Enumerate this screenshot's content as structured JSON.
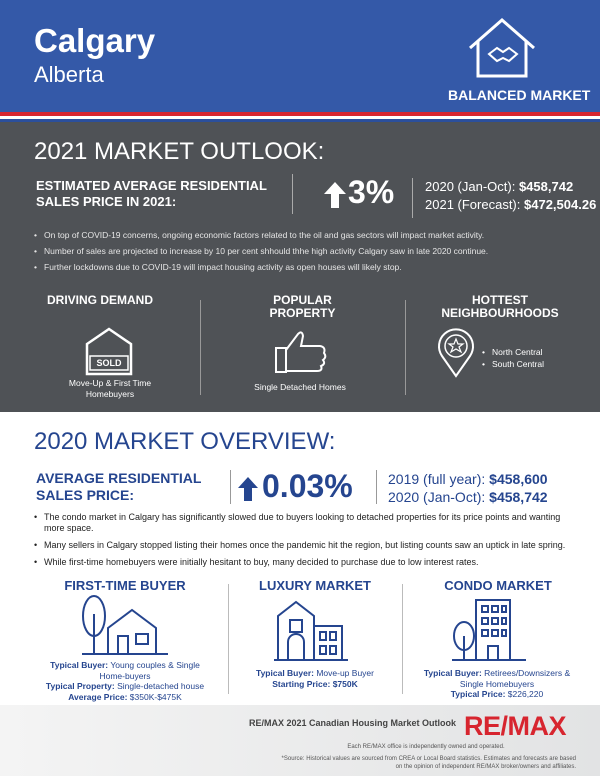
{
  "header": {
    "city": "Calgary",
    "province": "Alberta",
    "badge": "BALANCED MARKET"
  },
  "outlook": {
    "title": "2021 MARKET OUTLOOK:",
    "price_label": "ESTIMATED AVERAGE RESIDENTIAL SALES PRICE IN 2021:",
    "change": "3%",
    "figures": [
      {
        "label": "2020 (Jan-Oct):",
        "value": "$458,742"
      },
      {
        "label": "2021 (Forecast):",
        "value": "$472,504.26"
      }
    ],
    "bullets": [
      "On top of COVID-19 concerns, ongoing economic factors related to the oil and gas sectors will impact market activity.",
      "Number of sales are projected to increase by 10 per cent shhould thhe high activity Calgary saw in late 2020 continue.",
      "Further lockdowns due to COVID-19 will impact housing activity as open houses will likely stop."
    ],
    "columns": [
      {
        "title": "DRIVING DEMAND",
        "icon_text": "SOLD",
        "caption": "Move-Up & First Time Homebuyers"
      },
      {
        "title": "POPULAR PROPERTY",
        "caption": "Single Detached Homes"
      },
      {
        "title": "HOTTEST NEIGHBOURHOODS",
        "items": [
          "North Central",
          "South Central"
        ]
      }
    ]
  },
  "overview": {
    "title": "2020 MARKET OVERVIEW:",
    "price_label": "AVERAGE RESIDENTIAL SALES PRICE:",
    "change": "0.03%",
    "figures": [
      {
        "label": "2019 (full year):",
        "value": "$458,600"
      },
      {
        "label": "2020 (Jan-Oct):",
        "value": "$458,742"
      }
    ],
    "bullets": [
      "The condo market in Calgary has significantly slowed due to buyers looking to detached properties for its price points and wanting more space.",
      "Many sellers in Calgary stopped listing their homes once the pandemic hit the region, but listing counts saw an uptick in late spring.",
      "While first-time homebuyers were initially hesitant to buy, many decided to purchase due to low interest rates."
    ],
    "markets": [
      {
        "title": "FIRST-TIME BUYER",
        "details": [
          {
            "label": "Typical Buyer:",
            "value": "Young couples & Single Home-buyers"
          },
          {
            "label": "Typical Property:",
            "value": "Single-detached house"
          },
          {
            "label": "Average Price:",
            "value": "$350K-$475K"
          }
        ]
      },
      {
        "title": "LUXURY MARKET",
        "details": [
          {
            "label": "Typical Buyer:",
            "value": "Move-up Buyer"
          },
          {
            "label": "Starting Price:",
            "value": "$750K"
          }
        ]
      },
      {
        "title": "CONDO MARKET",
        "details": [
          {
            "label": "Typical Buyer:",
            "value": "Retirees/Downsizers & Single Homebuyers"
          },
          {
            "label": "Typical Price:",
            "value": "$226,220"
          }
        ]
      }
    ]
  },
  "footer": {
    "title": "RE/MAX 2021 Canadian Housing Market Outlook",
    "note": "Each RE/MAX office is independently owned and operated.",
    "source": "*Source: Historical values are sourced from CREA or Local Board statistics. Estimates and forecasts are based on the opinion of independent RE/MAX broker/owners and affiliates.",
    "logo": "RE/MAX"
  }
}
